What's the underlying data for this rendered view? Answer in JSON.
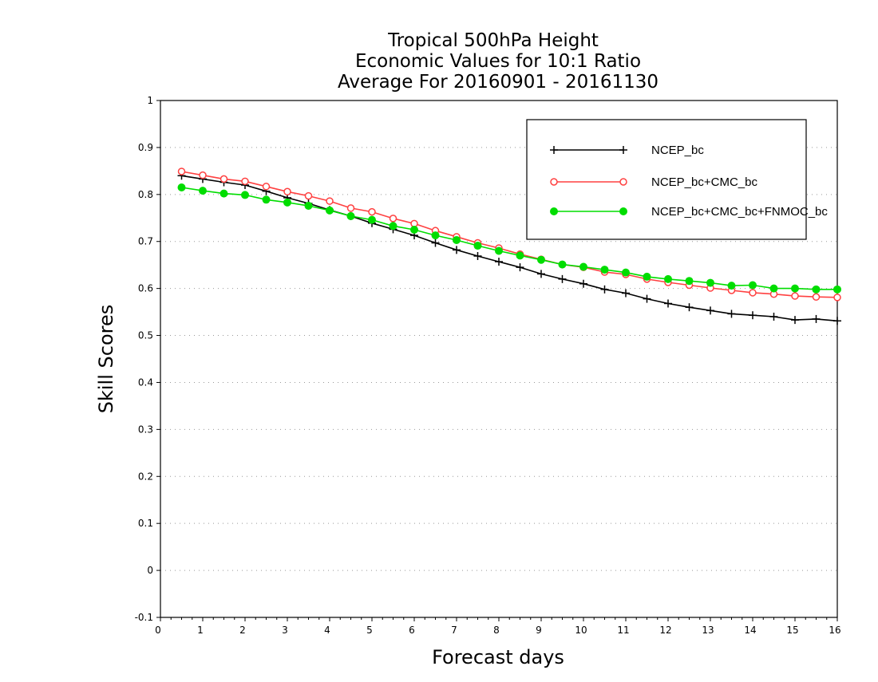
{
  "chart_data": {
    "type": "line",
    "title": [
      "Tropical 500hPa Height",
      "Economic Values for 10:1 Ratio",
      "Average For 20160901 - 20161130"
    ],
    "xlabel": "Forecast days",
    "ylabel": "Skill Scores",
    "xlim": [
      0,
      16
    ],
    "ylim": [
      -0.1,
      1
    ],
    "x_ticks": [
      "0",
      "1",
      "2",
      "3",
      "4",
      "5",
      "6",
      "7",
      "8",
      "9",
      "10",
      "11",
      "12",
      "13",
      "14",
      "15",
      "16"
    ],
    "y_ticks": [
      "-0.1",
      "0",
      "0.1",
      "0.2",
      "0.3",
      "0.4",
      "0.5",
      "0.6",
      "0.7",
      "0.8",
      "0.9",
      "1"
    ],
    "grid": "horizontal dotted",
    "legend_position": "top-right",
    "x": [
      0.5,
      1,
      1.5,
      2,
      2.5,
      3,
      3.5,
      4,
      4.5,
      5,
      5.5,
      6,
      6.5,
      7,
      7.5,
      8,
      8.5,
      9,
      9.5,
      10,
      10.5,
      11,
      11.5,
      12,
      12.5,
      13,
      13.5,
      14,
      14.5,
      15,
      15.5,
      16
    ],
    "series": [
      {
        "name": "NCEP_bc",
        "color": "#000000",
        "marker": "plus",
        "values": [
          0.84,
          0.833,
          0.826,
          0.82,
          0.807,
          0.793,
          0.781,
          0.767,
          0.754,
          0.739,
          0.726,
          0.713,
          0.697,
          0.682,
          0.669,
          0.657,
          0.645,
          0.631,
          0.62,
          0.61,
          0.598,
          0.59,
          0.578,
          0.568,
          0.56,
          0.553,
          0.546,
          0.543,
          0.54,
          0.533,
          0.535,
          0.531
        ]
      },
      {
        "name": "NCEP_bc+CMC_bc",
        "color": "#ff4040",
        "marker": "open-circle",
        "values": [
          0.849,
          0.841,
          0.833,
          0.828,
          0.817,
          0.806,
          0.797,
          0.786,
          0.771,
          0.763,
          0.749,
          0.738,
          0.723,
          0.71,
          0.697,
          0.686,
          0.673,
          0.662,
          0.651,
          0.645,
          0.635,
          0.63,
          0.62,
          0.613,
          0.607,
          0.601,
          0.596,
          0.591,
          0.588,
          0.584,
          0.582,
          0.581
        ]
      },
      {
        "name": "NCEP_bc+CMC_bc+FNMOC_bc",
        "color": "#00dd00",
        "marker": "filled-circle",
        "values": [
          0.815,
          0.808,
          0.802,
          0.799,
          0.789,
          0.783,
          0.776,
          0.766,
          0.754,
          0.746,
          0.733,
          0.725,
          0.713,
          0.703,
          0.691,
          0.68,
          0.67,
          0.661,
          0.651,
          0.646,
          0.64,
          0.634,
          0.625,
          0.62,
          0.616,
          0.612,
          0.606,
          0.607,
          0.6,
          0.6,
          0.598,
          0.598
        ]
      }
    ]
  }
}
